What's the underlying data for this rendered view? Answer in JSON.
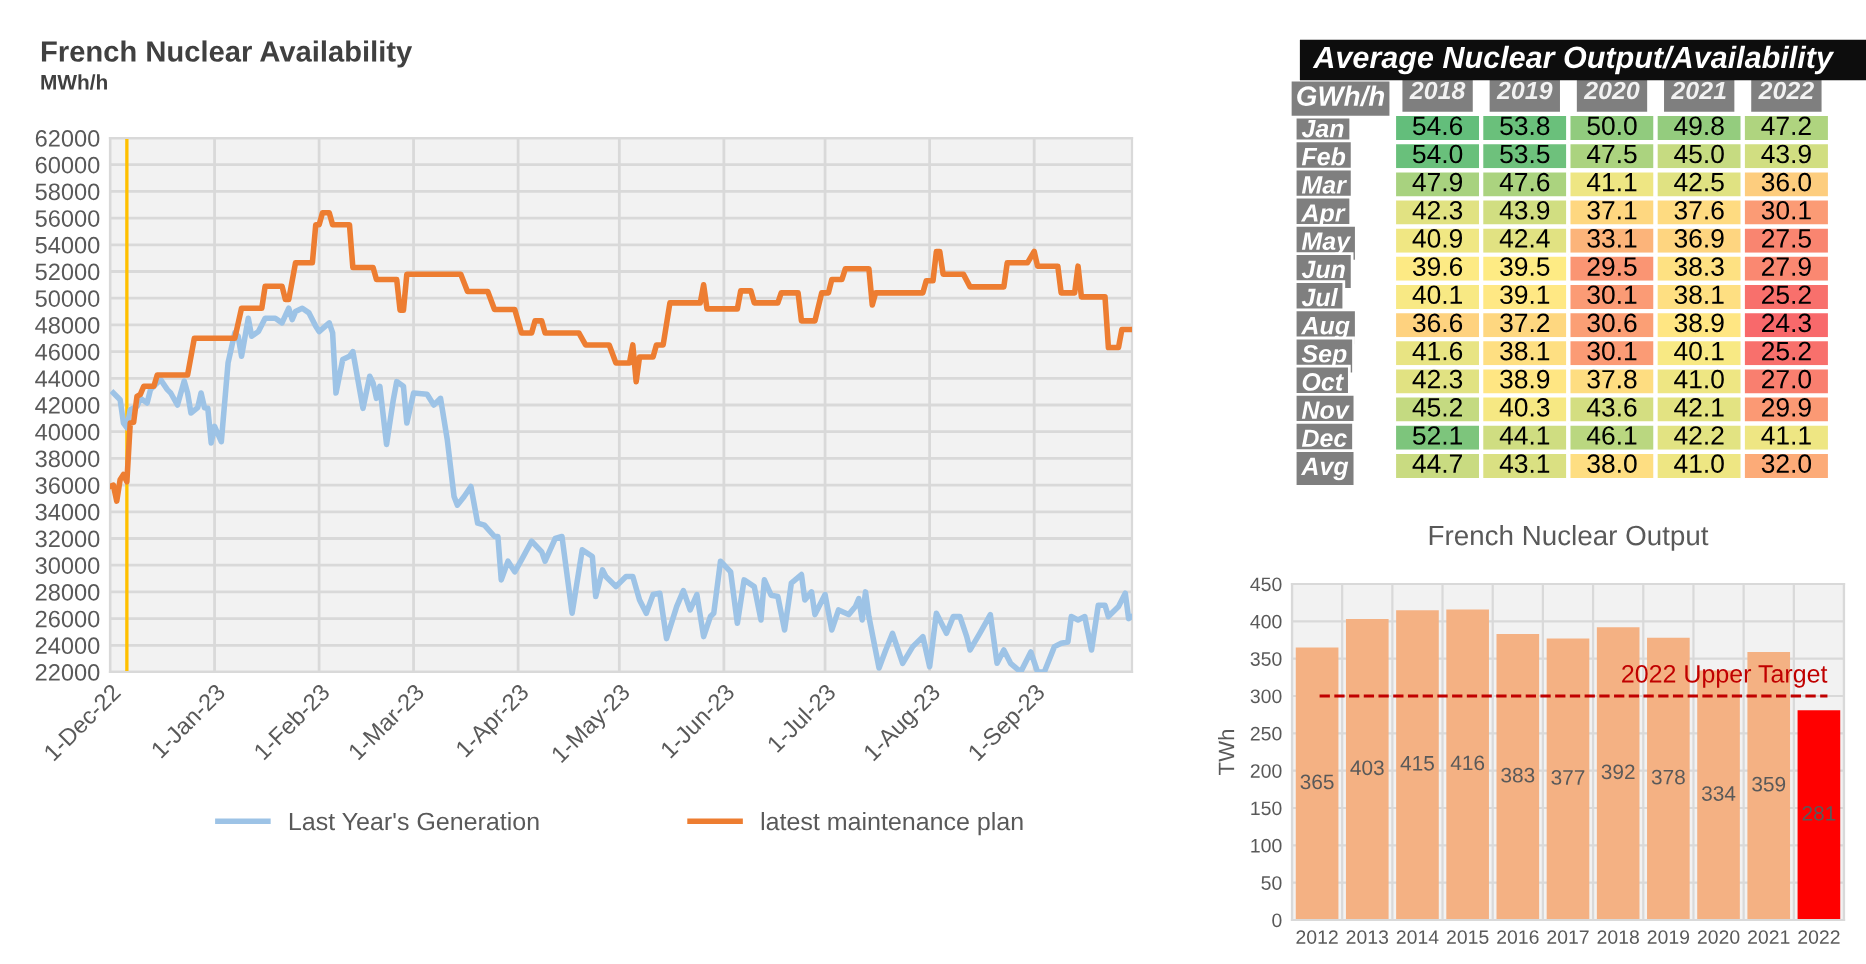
{
  "chart_data": [
    {
      "type": "line",
      "title": "French Nuclear Availability",
      "subtitle": "MWh/h",
      "xlim": [
        "2022-12-01",
        "2023-09-30"
      ],
      "xticks": [
        {
          "value": "2022-12-01",
          "label": "1-Dec-22"
        },
        {
          "value": "2023-01-01",
          "label": "1-Jan-23"
        },
        {
          "value": "2023-02-01",
          "label": "1-Feb-23"
        },
        {
          "value": "2023-03-01",
          "label": "1-Mar-23"
        },
        {
          "value": "2023-04-01",
          "label": "1-Apr-23"
        },
        {
          "value": "2023-05-01",
          "label": "1-May-23"
        },
        {
          "value": "2023-06-01",
          "label": "1-Jun-23"
        },
        {
          "value": "2023-07-01",
          "label": "1-Jul-23"
        },
        {
          "value": "2023-08-01",
          "label": "1-Aug-23"
        },
        {
          "value": "2023-09-01",
          "label": "1-Sep-23"
        }
      ],
      "ylim": [
        22000,
        62000
      ],
      "yticks": [
        22000,
        24000,
        26000,
        28000,
        30000,
        32000,
        34000,
        36000,
        38000,
        40000,
        42000,
        44000,
        46000,
        48000,
        50000,
        52000,
        54000,
        56000,
        58000,
        60000,
        62000
      ],
      "grid": true,
      "legend": "bottom",
      "ref_lines": [
        {
          "axis": "x",
          "value": "2022-12-06",
          "color": "#ffc000"
        }
      ],
      "series": [
        {
          "name": "Last Year's Generation",
          "color": "#9dc3e6",
          "x": [
            "2022-12-02",
            "2022-12-04",
            "2022-12-05",
            "2022-12-06",
            "2022-12-07",
            "2022-12-09",
            "2022-12-10",
            "2022-12-12",
            "2022-12-13",
            "2022-12-16",
            "2022-12-18",
            "2022-12-19",
            "2022-12-21",
            "2022-12-23",
            "2022-12-24",
            "2022-12-25",
            "2022-12-27",
            "2022-12-28",
            "2022-12-29",
            "2022-12-30",
            "2022-12-31",
            "2023-01-01",
            "2023-01-03",
            "2023-01-05",
            "2023-01-07",
            "2023-01-08",
            "2023-01-09",
            "2023-01-11",
            "2023-01-12",
            "2023-01-14",
            "2023-01-16",
            "2023-01-19",
            "2023-01-21",
            "2023-01-23",
            "2023-01-24",
            "2023-01-25",
            "2023-01-27",
            "2023-01-29",
            "2023-01-31",
            "2023-02-01",
            "2023-02-04",
            "2023-02-05",
            "2023-02-06",
            "2023-02-08",
            "2023-02-10",
            "2023-02-11",
            "2023-02-14",
            "2023-02-16",
            "2023-02-17",
            "2023-02-18",
            "2023-02-19",
            "2023-02-21",
            "2023-02-23",
            "2023-02-24",
            "2023-02-26",
            "2023-02-27",
            "2023-03-01",
            "2023-03-05",
            "2023-03-07",
            "2023-03-09",
            "2023-03-11",
            "2023-03-13",
            "2023-03-14",
            "2023-03-16",
            "2023-03-18",
            "2023-03-20",
            "2023-03-22",
            "2023-03-25",
            "2023-03-26",
            "2023-03-27",
            "2023-03-29",
            "2023-03-31",
            "2023-04-02",
            "2023-04-05",
            "2023-04-08",
            "2023-04-09",
            "2023-04-12",
            "2023-04-14",
            "2023-04-17",
            "2023-04-20",
            "2023-04-23",
            "2023-04-24",
            "2023-04-26",
            "2023-04-27",
            "2023-04-30",
            "2023-05-03",
            "2023-05-05",
            "2023-05-07",
            "2023-05-09",
            "2023-05-11",
            "2023-05-13",
            "2023-05-15",
            "2023-05-18",
            "2023-05-20",
            "2023-05-22",
            "2023-05-24",
            "2023-05-26",
            "2023-05-28",
            "2023-05-29",
            "2023-05-31",
            "2023-06-03",
            "2023-06-05",
            "2023-06-07",
            "2023-06-10",
            "2023-06-12",
            "2023-06-13",
            "2023-06-15",
            "2023-06-17",
            "2023-06-19",
            "2023-06-21",
            "2023-06-24",
            "2023-06-25",
            "2023-06-27",
            "2023-06-28",
            "2023-07-01",
            "2023-07-03",
            "2023-07-05",
            "2023-07-08",
            "2023-07-10",
            "2023-07-11",
            "2023-07-12",
            "2023-07-13",
            "2023-07-14",
            "2023-07-17",
            "2023-07-19",
            "2023-07-21",
            "2023-07-24",
            "2023-07-27",
            "2023-07-30",
            "2023-08-01",
            "2023-08-03",
            "2023-08-06",
            "2023-08-08",
            "2023-08-10",
            "2023-08-12",
            "2023-08-13",
            "2023-08-16",
            "2023-08-19",
            "2023-08-21",
            "2023-08-23",
            "2023-08-25",
            "2023-08-28",
            "2023-08-31",
            "2023-09-02",
            "2023-09-04",
            "2023-09-07",
            "2023-09-09",
            "2023-09-11",
            "2023-09-12",
            "2023-09-14",
            "2023-09-16",
            "2023-09-18",
            "2023-09-20",
            "2023-09-22",
            "2023-09-23",
            "2023-09-26",
            "2023-09-28",
            "2023-09-29",
            "2023-09-30"
          ],
          "values": [
            42900,
            42400,
            40650,
            40300,
            41650,
            41900,
            42500,
            42150,
            43150,
            43900,
            43150,
            42900,
            42000,
            43800,
            42900,
            41400,
            41800,
            42900,
            41800,
            41750,
            39150,
            40400,
            39250,
            45150,
            47400,
            47150,
            45650,
            48500,
            47150,
            47500,
            48500,
            48500,
            48150,
            49250,
            48400,
            49000,
            49250,
            48900,
            47900,
            47500,
            48150,
            47400,
            42900,
            45400,
            45650,
            46000,
            41750,
            44150,
            43650,
            42500,
            43400,
            39050,
            42400,
            43750,
            43400,
            40650,
            42900,
            42800,
            42000,
            42500,
            39400,
            35150,
            34500,
            35150,
            35900,
            33150,
            33000,
            32150,
            32150,
            28900,
            30300,
            29500,
            30400,
            31800,
            31000,
            30300,
            32000,
            32150,
            26400,
            31150,
            30650,
            27650,
            29650,
            29150,
            28400,
            29150,
            29150,
            27400,
            26400,
            27800,
            27900,
            24500,
            26900,
            28100,
            26650,
            27800,
            24650,
            26150,
            26400,
            30300,
            29500,
            25650,
            28900,
            28400,
            25900,
            28900,
            27750,
            27650,
            25150,
            28650,
            29300,
            27400,
            28000,
            26300,
            27800,
            25150,
            26650,
            26300,
            26900,
            27500,
            25900,
            28000,
            26150,
            22300,
            23650,
            24900,
            22650,
            23900,
            24650,
            22400,
            26400,
            24900,
            26150,
            26150,
            24650,
            23650,
            24950,
            26300,
            22650,
            23650,
            22650,
            22000,
            23500,
            22000,
            22000,
            23900,
            24150,
            24250,
            26150,
            25900,
            26150,
            23650,
            27000,
            27000,
            26150,
            26900,
            27900,
            26000,
            26150
          ]
        },
        {
          "name": "latest maintenance plan",
          "color": "#ed7d31",
          "x": [
            "2022-12-01",
            "2022-12-02",
            "2022-12-03",
            "2022-12-04",
            "2022-12-05",
            "2022-12-06",
            "2022-12-07",
            "2022-12-08",
            "2022-12-09",
            "2022-12-10",
            "2022-12-11",
            "2022-12-14",
            "2022-12-15",
            "2022-12-24",
            "2022-12-26",
            "2023-01-07",
            "2023-01-09",
            "2023-01-15",
            "2023-01-16",
            "2023-01-21",
            "2023-01-22",
            "2023-01-23",
            "2023-01-25",
            "2023-01-30",
            "2023-01-31",
            "2023-02-01",
            "2023-02-02",
            "2023-02-04",
            "2023-02-05",
            "2023-02-10",
            "2023-02-11",
            "2023-02-17",
            "2023-02-18",
            "2023-02-24",
            "2023-02-25",
            "2023-02-26",
            "2023-02-27",
            "2023-03-15",
            "2023-03-17",
            "2023-03-23",
            "2023-03-25",
            "2023-03-31",
            "2023-04-02",
            "2023-04-05",
            "2023-04-06",
            "2023-04-08",
            "2023-04-09",
            "2023-04-19",
            "2023-04-21",
            "2023-04-28",
            "2023-04-30",
            "2023-05-04",
            "2023-05-05",
            "2023-05-06",
            "2023-05-07",
            "2023-05-11",
            "2023-05-12",
            "2023-05-14",
            "2023-05-16",
            "2023-05-25",
            "2023-05-26",
            "2023-05-27",
            "2023-06-05",
            "2023-06-06",
            "2023-06-09",
            "2023-06-10",
            "2023-06-17",
            "2023-06-18",
            "2023-06-23",
            "2023-06-24",
            "2023-06-28",
            "2023-06-30",
            "2023-07-02",
            "2023-07-03",
            "2023-07-06",
            "2023-07-07",
            "2023-07-14",
            "2023-07-15",
            "2023-07-16",
            "2023-07-30",
            "2023-07-31",
            "2023-08-02",
            "2023-08-03",
            "2023-08-04",
            "2023-08-05",
            "2023-08-11",
            "2023-08-13",
            "2023-08-23",
            "2023-08-24",
            "2023-08-30",
            "2023-09-01",
            "2023-09-02",
            "2023-09-08",
            "2023-09-09",
            "2023-09-13",
            "2023-09-14",
            "2023-09-15",
            "2023-09-22",
            "2023-09-23",
            "2023-09-26",
            "2023-09-27",
            "2023-09-30"
          ],
          "values": [
            35900,
            36000,
            34800,
            36400,
            36800,
            36250,
            40650,
            40700,
            42650,
            42800,
            43400,
            43400,
            44250,
            44250,
            47000,
            47000,
            49250,
            49250,
            50900,
            50900,
            49900,
            49900,
            52650,
            52650,
            55500,
            55500,
            56400,
            56400,
            55500,
            55500,
            52300,
            52300,
            51400,
            51400,
            49100,
            49100,
            51800,
            51800,
            50500,
            50500,
            49150,
            49150,
            47400,
            47400,
            48300,
            48300,
            47400,
            47400,
            46500,
            46500,
            45150,
            45150,
            46500,
            43750,
            45600,
            45600,
            46500,
            46500,
            49650,
            49650,
            51000,
            49200,
            49200,
            50550,
            50550,
            49650,
            49650,
            50400,
            50400,
            48300,
            48300,
            50400,
            50400,
            51400,
            51400,
            52200,
            52200,
            49500,
            50400,
            50400,
            51300,
            51300,
            53500,
            53500,
            51800,
            51800,
            50850,
            50850,
            52650,
            52650,
            53500,
            52400,
            52400,
            50400,
            50400,
            52400,
            50100,
            50100,
            46300,
            46300,
            47650,
            47650
          ]
        }
      ]
    },
    {
      "type": "heatmap",
      "title": "Average Nuclear Output/Availability",
      "ylabel": "GWh/h",
      "data_labels": true,
      "categories": [
        "2018",
        "2019",
        "2020",
        "2021",
        "2022"
      ],
      "y_categories": [
        "Jan",
        "Feb",
        "Mar",
        "Apr",
        "May",
        "Jun",
        "Jul",
        "Aug",
        "Sep",
        "Oct",
        "Nov",
        "Dec",
        "Avg"
      ],
      "cells": [
        [
          54.6,
          53.8,
          50.0,
          49.8,
          47.2
        ],
        [
          54.0,
          53.5,
          47.5,
          45.0,
          43.9
        ],
        [
          47.9,
          47.6,
          41.1,
          42.5,
          36.0
        ],
        [
          42.3,
          43.9,
          37.1,
          37.6,
          30.1
        ],
        [
          40.9,
          42.4,
          33.1,
          36.9,
          27.5
        ],
        [
          39.6,
          39.5,
          29.5,
          38.3,
          27.9
        ],
        [
          40.1,
          39.1,
          30.1,
          38.1,
          25.2
        ],
        [
          36.6,
          37.2,
          30.6,
          38.9,
          24.3
        ],
        [
          41.6,
          38.1,
          30.1,
          40.1,
          25.2
        ],
        [
          42.3,
          38.9,
          37.8,
          41.0,
          27.0
        ],
        [
          45.2,
          40.3,
          43.6,
          42.1,
          29.9
        ],
        [
          52.1,
          44.1,
          46.1,
          42.2,
          41.1
        ],
        [
          44.7,
          43.1,
          38.0,
          41.0,
          32.0
        ]
      ],
      "cell_labels": [
        [
          "54.6",
          "53.8",
          "50.0",
          "49.8",
          "47.2"
        ],
        [
          "54.0",
          "53.5",
          "47.5",
          "45.0",
          "43.9"
        ],
        [
          "47.9",
          "47.6",
          "41.1",
          "42.5",
          "36.0"
        ],
        [
          "42.3",
          "43.9",
          "37.1",
          "37.6",
          "30.1"
        ],
        [
          "40.9",
          "42.4",
          "33.1",
          "36.9",
          "27.5"
        ],
        [
          "39.6",
          "39.5",
          "29.5",
          "38.3",
          "27.9"
        ],
        [
          "40.1",
          "39.1",
          "30.1",
          "38.1",
          "25.2"
        ],
        [
          "36.6",
          "37.2",
          "30.6",
          "38.9",
          "24.3"
        ],
        [
          "41.6",
          "38.1",
          "30.1",
          "40.1",
          "25.2"
        ],
        [
          "42.3",
          "38.9",
          "37.8",
          "41.0",
          "27.0"
        ],
        [
          "45.2",
          "40.3",
          "43.6",
          "42.1",
          "29.9"
        ],
        [
          "52.1",
          "44.1",
          "46.1",
          "42.2",
          "41.1"
        ],
        [
          "44.7",
          "43.1",
          "38.0",
          "41.0",
          "32.0"
        ]
      ]
    },
    {
      "type": "bar",
      "title": "French Nuclear Output",
      "ylabel": "TWh",
      "categories": [
        "2012",
        "2013",
        "2014",
        "2015",
        "2016",
        "2017",
        "2018",
        "2019",
        "2020",
        "2021",
        "2022"
      ],
      "values": [
        365,
        403,
        415,
        416,
        383,
        377,
        392,
        378,
        334,
        359,
        281
      ],
      "colors": [
        "#f4b183",
        "#f4b183",
        "#f4b183",
        "#f4b183",
        "#f4b183",
        "#f4b183",
        "#f4b183",
        "#f4b183",
        "#f4b183",
        "#f4b183",
        "#ff0000"
      ],
      "ylim": [
        0,
        450
      ],
      "yticks": [
        0,
        50,
        100,
        150,
        200,
        250,
        300,
        350,
        400,
        450
      ],
      "grid": true,
      "data_labels": true,
      "ref_lines": [
        {
          "axis": "y",
          "value": 300,
          "label": "2022 Upper Target",
          "color": "#c00000",
          "line_style": "dashed"
        }
      ]
    }
  ]
}
